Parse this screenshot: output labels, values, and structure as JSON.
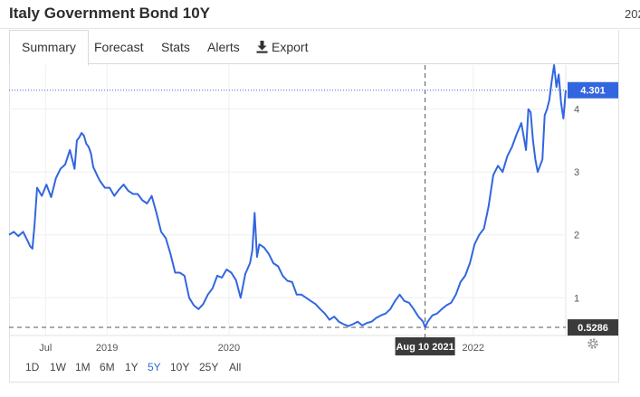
{
  "page": {
    "title": "Italy Government Bond 10Y",
    "title_right_cut": "202"
  },
  "tabs": [
    {
      "label": "Summary",
      "active": true
    },
    {
      "label": "Forecast",
      "active": false
    },
    {
      "label": "Stats",
      "active": false
    },
    {
      "label": "Alerts",
      "active": false
    },
    {
      "label": "Export",
      "active": false,
      "icon": "download-icon"
    }
  ],
  "ranges": [
    {
      "label": "1D",
      "active": false
    },
    {
      "label": "1W",
      "active": false
    },
    {
      "label": "1M",
      "active": false
    },
    {
      "label": "6M",
      "active": false
    },
    {
      "label": "1Y",
      "active": false
    },
    {
      "label": "5Y",
      "active": true
    },
    {
      "label": "10Y",
      "active": false
    },
    {
      "label": "25Y",
      "active": false
    },
    {
      "label": "All",
      "active": false
    }
  ],
  "colors": {
    "line": "#3266e0",
    "last_price_label": "#3266e0",
    "crosshair_label": "#3b3b3b",
    "active_range": "#2f6cd8"
  },
  "chart_data": {
    "type": "line",
    "title": "",
    "xlabel": "",
    "ylabel": "",
    "ylim": [
      0.4,
      4.7
    ],
    "yticks": [
      1,
      2,
      3,
      4
    ],
    "x_tick_labels": [
      "Jul",
      "2019",
      "2020",
      "2022"
    ],
    "x_tick_dates": [
      "2018-07-01",
      "2019-01-01",
      "2020-01-01",
      "2022-01-01"
    ],
    "last_value": "4.301",
    "crosshair": {
      "date_label": "Aug 10 2021",
      "date": "2021-08-10",
      "value_label": "0.5286",
      "value": 0.5286
    },
    "series": [
      {
        "name": "",
        "x": [
          "2018-03-14",
          "2018-03-28",
          "2018-04-11",
          "2018-04-25",
          "2018-05-09",
          "2018-05-16",
          "2018-05-23",
          "2018-05-29",
          "2018-06-06",
          "2018-06-20",
          "2018-07-04",
          "2018-07-18",
          "2018-08-01",
          "2018-08-15",
          "2018-08-29",
          "2018-09-12",
          "2018-09-26",
          "2018-10-03",
          "2018-10-10",
          "2018-10-17",
          "2018-10-24",
          "2018-10-31",
          "2018-11-07",
          "2018-11-14",
          "2018-11-21",
          "2018-11-28",
          "2018-12-05",
          "2018-12-12",
          "2018-12-26",
          "2019-01-09",
          "2019-01-23",
          "2019-02-06",
          "2019-02-20",
          "2019-03-06",
          "2019-03-20",
          "2019-04-03",
          "2019-04-17",
          "2019-05-01",
          "2019-05-15",
          "2019-05-29",
          "2019-06-12",
          "2019-06-26",
          "2019-07-10",
          "2019-07-24",
          "2019-08-07",
          "2019-08-21",
          "2019-09-04",
          "2019-09-18",
          "2019-10-02",
          "2019-10-16",
          "2019-10-30",
          "2019-11-13",
          "2019-11-27",
          "2019-12-11",
          "2019-12-25",
          "2020-01-08",
          "2020-01-22",
          "2020-02-05",
          "2020-02-19",
          "2020-03-04",
          "2020-03-11",
          "2020-03-18",
          "2020-03-25",
          "2020-04-01",
          "2020-04-15",
          "2020-04-29",
          "2020-05-13",
          "2020-05-27",
          "2020-06-10",
          "2020-06-24",
          "2020-07-08",
          "2020-07-22",
          "2020-08-05",
          "2020-08-19",
          "2020-09-02",
          "2020-09-16",
          "2020-09-30",
          "2020-10-14",
          "2020-10-28",
          "2020-11-11",
          "2020-11-25",
          "2020-12-09",
          "2020-12-23",
          "2021-01-06",
          "2021-01-20",
          "2021-02-03",
          "2021-02-17",
          "2021-03-03",
          "2021-03-17",
          "2021-03-31",
          "2021-04-14",
          "2021-04-28",
          "2021-05-12",
          "2021-05-26",
          "2021-06-09",
          "2021-06-23",
          "2021-07-07",
          "2021-07-21",
          "2021-08-04",
          "2021-08-10",
          "2021-08-18",
          "2021-09-01",
          "2021-09-15",
          "2021-09-29",
          "2021-10-13",
          "2021-10-27",
          "2021-11-10",
          "2021-11-24",
          "2021-12-08",
          "2021-12-22",
          "2022-01-05",
          "2022-01-19",
          "2022-02-02",
          "2022-02-16",
          "2022-03-02",
          "2022-03-16",
          "2022-03-30",
          "2022-04-13",
          "2022-04-27",
          "2022-05-11",
          "2022-05-25",
          "2022-06-08",
          "2022-06-15",
          "2022-06-22",
          "2022-06-29",
          "2022-07-06",
          "2022-07-13",
          "2022-07-20",
          "2022-07-27",
          "2022-08-03",
          "2022-08-10",
          "2022-08-17",
          "2022-08-24",
          "2022-08-31",
          "2022-09-07",
          "2022-09-14",
          "2022-09-21",
          "2022-09-28",
          "2022-10-05"
        ],
        "values": [
          2.0,
          2.05,
          1.98,
          2.05,
          1.9,
          1.82,
          1.78,
          2.15,
          2.75,
          2.62,
          2.8,
          2.6,
          2.9,
          3.05,
          3.12,
          3.35,
          3.05,
          3.5,
          3.55,
          3.62,
          3.58,
          3.45,
          3.4,
          3.3,
          3.08,
          3.0,
          2.92,
          2.85,
          2.75,
          2.75,
          2.62,
          2.72,
          2.8,
          2.7,
          2.65,
          2.65,
          2.55,
          2.5,
          2.62,
          2.35,
          2.05,
          1.95,
          1.7,
          1.4,
          1.4,
          1.35,
          1.0,
          0.88,
          0.82,
          0.9,
          1.05,
          1.15,
          1.35,
          1.32,
          1.45,
          1.4,
          1.28,
          1.0,
          1.38,
          1.55,
          1.75,
          2.35,
          1.65,
          1.85,
          1.8,
          1.7,
          1.55,
          1.5,
          1.35,
          1.27,
          1.25,
          1.05,
          1.05,
          1.0,
          0.95,
          0.9,
          0.82,
          0.75,
          0.65,
          0.7,
          0.62,
          0.58,
          0.55,
          0.58,
          0.62,
          0.56,
          0.6,
          0.62,
          0.68,
          0.72,
          0.75,
          0.82,
          0.95,
          1.05,
          0.95,
          0.92,
          0.82,
          0.7,
          0.62,
          0.5286,
          0.62,
          0.72,
          0.75,
          0.82,
          0.88,
          0.92,
          1.05,
          1.25,
          1.35,
          1.55,
          1.85,
          2.0,
          2.1,
          2.45,
          2.95,
          3.1,
          3.0,
          3.25,
          3.4,
          3.6,
          3.78,
          3.35,
          4.0,
          3.95,
          3.5,
          3.2,
          3.0,
          3.1,
          3.2,
          3.9,
          4.0,
          4.15,
          4.45,
          4.7,
          4.35,
          4.55,
          4.1,
          3.85,
          4.301
        ]
      }
    ]
  }
}
